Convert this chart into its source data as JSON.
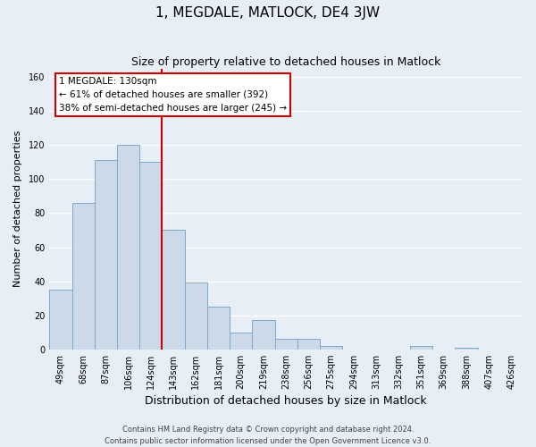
{
  "title": "1, MEGDALE, MATLOCK, DE4 3JW",
  "subtitle": "Size of property relative to detached houses in Matlock",
  "xlabel": "Distribution of detached houses by size in Matlock",
  "ylabel": "Number of detached properties",
  "footer_line1": "Contains HM Land Registry data © Crown copyright and database right 2024.",
  "footer_line2": "Contains public sector information licensed under the Open Government Licence v3.0.",
  "categories": [
    "49sqm",
    "68sqm",
    "87sqm",
    "106sqm",
    "124sqm",
    "143sqm",
    "162sqm",
    "181sqm",
    "200sqm",
    "219sqm",
    "238sqm",
    "256sqm",
    "275sqm",
    "294sqm",
    "313sqm",
    "332sqm",
    "351sqm",
    "369sqm",
    "388sqm",
    "407sqm",
    "426sqm"
  ],
  "values": [
    35,
    86,
    111,
    120,
    110,
    70,
    39,
    25,
    10,
    17,
    6,
    6,
    2,
    0,
    0,
    0,
    2,
    0,
    1,
    0,
    0
  ],
  "bar_color": "#ccd9e8",
  "bar_edge_color": "#7ca8cc",
  "vline_color": "#cc0000",
  "vline_index": 4,
  "annotation_title": "1 MEGDALE: 130sqm",
  "annotation_line1": "← 61% of detached houses are smaller (392)",
  "annotation_line2": "38% of semi-detached houses are larger (245) →",
  "annotation_box_color": "#ffffff",
  "annotation_box_edge": "#cc0000",
  "ylim": [
    0,
    165
  ],
  "yticks": [
    0,
    20,
    40,
    60,
    80,
    100,
    120,
    140,
    160
  ],
  "background_color": "#e8eef5",
  "plot_bg_color": "#e8eef5",
  "title_fontsize": 11,
  "subtitle_fontsize": 9,
  "xlabel_fontsize": 9,
  "ylabel_fontsize": 8,
  "tick_fontsize": 7,
  "footer_fontsize": 6,
  "annot_fontsize": 7.5
}
